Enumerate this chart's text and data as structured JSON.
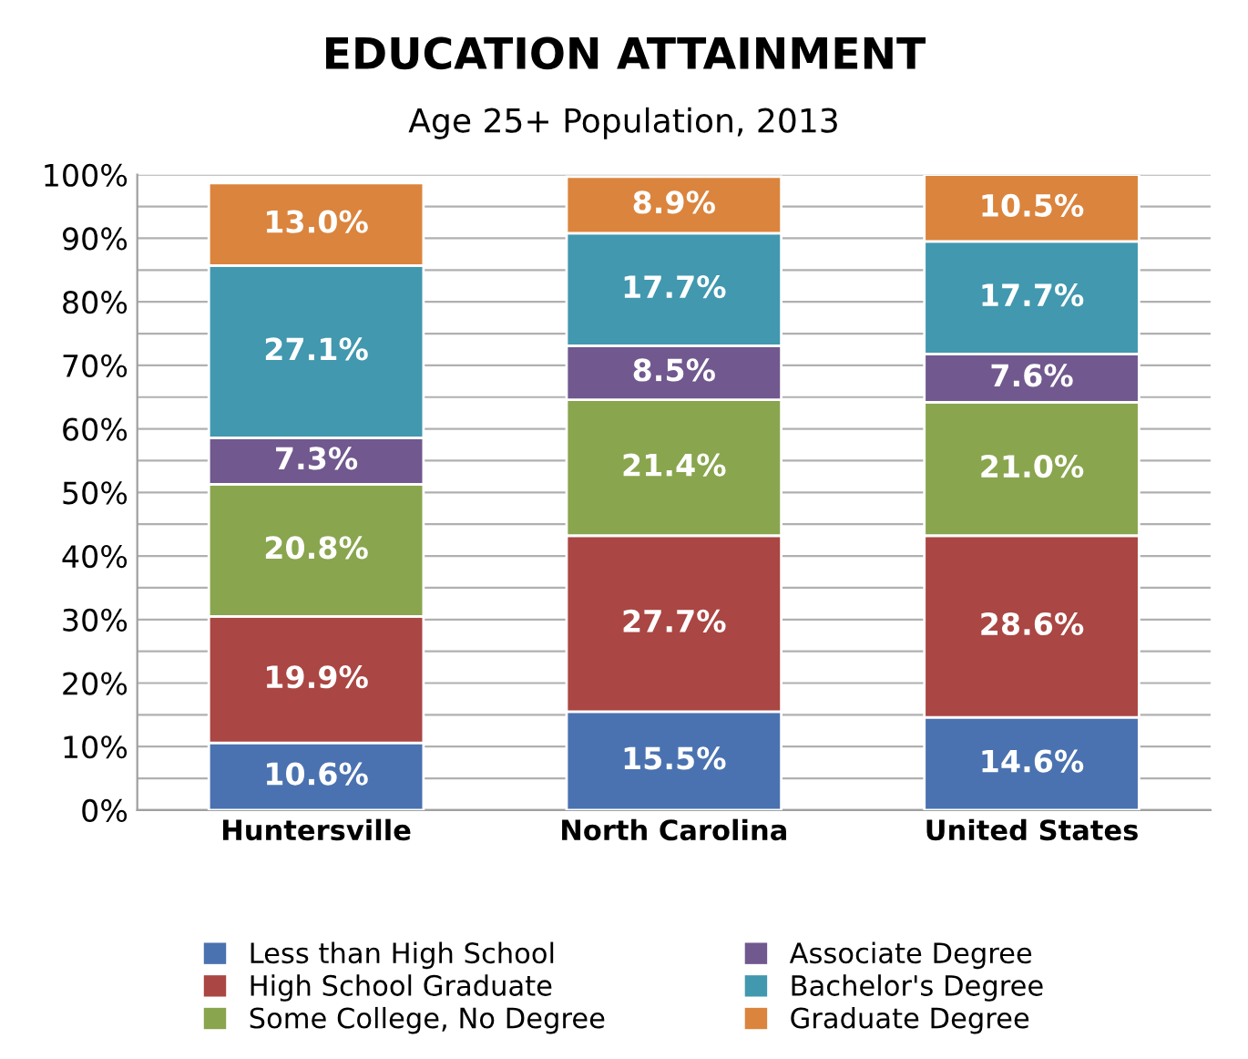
{
  "chart_data": {
    "type": "bar",
    "stacked": true,
    "title": "EDUCATION ATTAINMENT",
    "subtitle": "Age 25+ Population, 2013",
    "categories": [
      "Huntersville",
      "North Carolina",
      "United States"
    ],
    "series": [
      {
        "name": "Less than High School",
        "color": "#4a72b0",
        "values": [
          10.6,
          15.5,
          14.6
        ],
        "value_labels": [
          "10.6%",
          "15.5%",
          "14.6%"
        ]
      },
      {
        "name": "High School Graduate",
        "color": "#aa4643",
        "values": [
          19.9,
          27.7,
          28.6
        ],
        "value_labels": [
          "19.9%",
          "27.7%",
          "28.6%"
        ]
      },
      {
        "name": "Some College, No Degree",
        "color": "#89a54e",
        "values": [
          20.8,
          21.4,
          21.0
        ],
        "value_labels": [
          "20.8%",
          "21.4%",
          "21.0%"
        ]
      },
      {
        "name": "Associate Degree",
        "color": "#71588f",
        "values": [
          7.3,
          8.5,
          7.6
        ],
        "value_labels": [
          "7.3%",
          "8.5%",
          "7.6%"
        ]
      },
      {
        "name": "Bachelor's Degree",
        "color": "#4198af",
        "values": [
          27.1,
          17.7,
          17.7
        ],
        "value_labels": [
          "27.1%",
          "17.7%",
          "17.7%"
        ]
      },
      {
        "name": "Graduate Degree",
        "color": "#db843d",
        "values": [
          13.0,
          8.9,
          10.5
        ],
        "value_labels": [
          "13.0%",
          "8.9%",
          "10.5%"
        ]
      }
    ],
    "ylim": [
      0,
      100
    ],
    "yticks": [
      {
        "value": 0,
        "label": "0%"
      },
      {
        "value": 5,
        "label": null
      },
      {
        "value": 10,
        "label": "10%"
      },
      {
        "value": 15,
        "label": null
      },
      {
        "value": 20,
        "label": "20%"
      },
      {
        "value": 25,
        "label": null
      },
      {
        "value": 30,
        "label": "30%"
      },
      {
        "value": 35,
        "label": null
      },
      {
        "value": 40,
        "label": "40%"
      },
      {
        "value": 45,
        "label": null
      },
      {
        "value": 50,
        "label": "50%"
      },
      {
        "value": 55,
        "label": null
      },
      {
        "value": 60,
        "label": "60%"
      },
      {
        "value": 65,
        "label": null
      },
      {
        "value": 70,
        "label": "70%"
      },
      {
        "value": 75,
        "label": null
      },
      {
        "value": 80,
        "label": "80%"
      },
      {
        "value": 85,
        "label": null
      },
      {
        "value": 90,
        "label": "90%"
      },
      {
        "value": 95,
        "label": null
      },
      {
        "value": 100,
        "label": "100%"
      }
    ],
    "grid": "y",
    "legend": "bottom"
  }
}
